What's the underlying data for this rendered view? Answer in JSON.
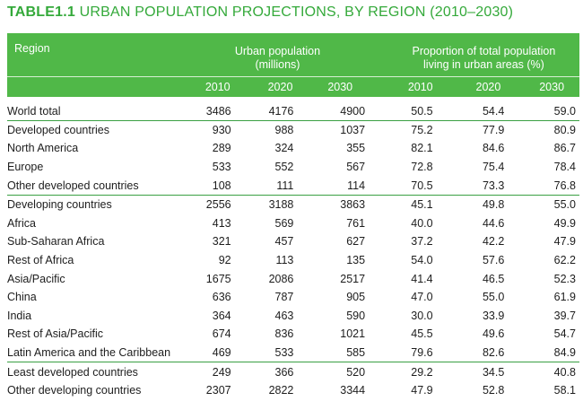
{
  "title": {
    "code": "TABLE1.1",
    "text": "URBAN POPULATION PROJECTIONS, BY REGION (2010–2030)"
  },
  "header": {
    "region": "Region",
    "urban_group_line1": "Urban population",
    "urban_group_line2": "(millions)",
    "prop_group_line1": "Proportion of total population",
    "prop_group_line2": "living in urban areas (%)",
    "years": [
      "2010",
      "2020",
      "2030",
      "2010",
      "2020",
      "2030"
    ]
  },
  "rows": [
    {
      "name": "World total",
      "u": [
        "3486",
        "4176",
        "4900"
      ],
      "p": [
        "50.5",
        "54.4",
        "59.0"
      ]
    },
    {
      "name": "Developed countries",
      "u": [
        "930",
        "988",
        "1037"
      ],
      "p": [
        "75.2",
        "77.9",
        "80.9"
      ]
    },
    {
      "name": "North America",
      "u": [
        "289",
        "324",
        "355"
      ],
      "p": [
        "82.1",
        "84.6",
        "86.7"
      ]
    },
    {
      "name": "Europe",
      "u": [
        "533",
        "552",
        "567"
      ],
      "p": [
        "72.8",
        "75.4",
        "78.4"
      ]
    },
    {
      "name": "Other developed countries",
      "u": [
        "108",
        "111",
        "114"
      ],
      "p": [
        "70.5",
        "73.3",
        "76.8"
      ]
    },
    {
      "name": "Developing countries",
      "u": [
        "2556",
        "3188",
        "3863"
      ],
      "p": [
        "45.1",
        "49.8",
        "55.0"
      ]
    },
    {
      "name": "Africa",
      "u": [
        "413",
        "569",
        "761"
      ],
      "p": [
        "40.0",
        "44.6",
        "49.9"
      ]
    },
    {
      "name": "Sub-Saharan Africa",
      "u": [
        "321",
        "457",
        "627"
      ],
      "p": [
        "37.2",
        "42.2",
        "47.9"
      ]
    },
    {
      "name": "Rest of Africa",
      "u": [
        "92",
        "113",
        "135"
      ],
      "p": [
        "54.0",
        "57.6",
        "62.2"
      ]
    },
    {
      "name": "Asia/Pacific",
      "u": [
        "1675",
        "2086",
        "2517"
      ],
      "p": [
        "41.4",
        "46.5",
        "52.3"
      ]
    },
    {
      "name": "China",
      "u": [
        "636",
        "787",
        "905"
      ],
      "p": [
        "47.0",
        "55.0",
        "61.9"
      ]
    },
    {
      "name": "India",
      "u": [
        "364",
        "463",
        "590"
      ],
      "p": [
        "30.0",
        "33.9",
        "39.7"
      ]
    },
    {
      "name": "Rest of Asia/Pacific",
      "u": [
        "674",
        "836",
        "1021"
      ],
      "p": [
        "45.5",
        "49.6",
        "54.7"
      ]
    },
    {
      "name": "Latin America and the Caribbean",
      "u": [
        "469",
        "533",
        "585"
      ],
      "p": [
        "79.6",
        "82.6",
        "84.9"
      ]
    },
    {
      "name": "Least developed countries",
      "u": [
        "249",
        "366",
        "520"
      ],
      "p": [
        "29.2",
        "34.5",
        "40.8"
      ]
    },
    {
      "name": "Other developing countries",
      "u": [
        "2307",
        "2822",
        "3344"
      ],
      "p": [
        "47.9",
        "52.8",
        "58.1"
      ]
    }
  ]
}
